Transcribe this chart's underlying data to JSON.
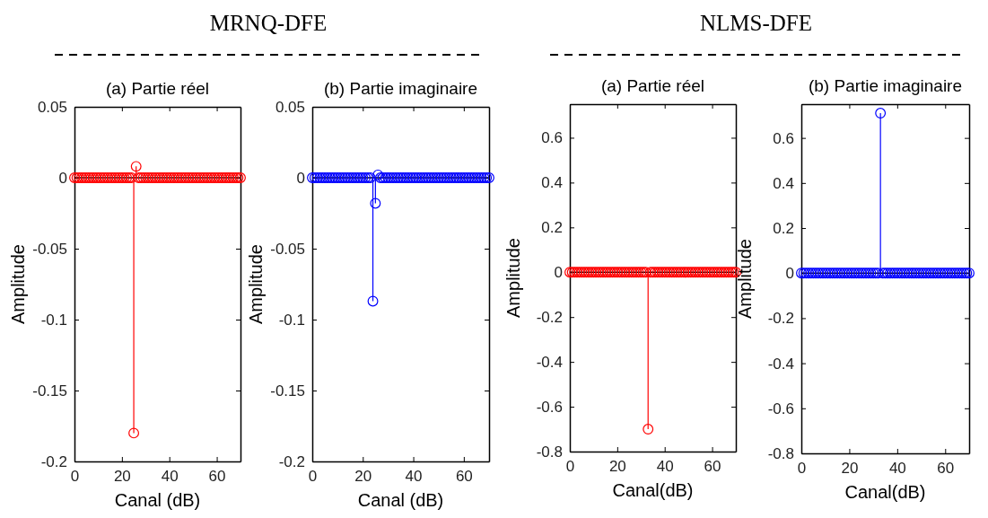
{
  "chart_data": [
    {
      "type": "lollipop",
      "title": "(a) Partie réel",
      "xlabel": "Canal (dB)",
      "ylabel": "Amplitude",
      "annotations": [
        "MRNQ-DFE"
      ],
      "marker": "circle",
      "grid": false,
      "xlim": [
        0,
        70
      ],
      "xticks": [
        0,
        20,
        40,
        60
      ],
      "ylim": [
        -0.2,
        0.05
      ],
      "yticks": [
        -0.2,
        -0.15,
        -0.1,
        -0.05,
        0,
        0.05
      ],
      "ref_lines": [
        {
          "axis": "y",
          "value": 0,
          "color": "#000000"
        }
      ],
      "series": [
        {
          "color": "#ff0000",
          "x": [
            0,
            1,
            2,
            3,
            4,
            5,
            6,
            7,
            8,
            9,
            10,
            11,
            12,
            13,
            14,
            15,
            16,
            17,
            18,
            19,
            20,
            21,
            22,
            23,
            24,
            25,
            26,
            27,
            28,
            29,
            30,
            31,
            32,
            33,
            34,
            35,
            36,
            37,
            38,
            39,
            40,
            41,
            42,
            43,
            44,
            45,
            46,
            47,
            48,
            49,
            50,
            51,
            52,
            53,
            54,
            55,
            56,
            57,
            58,
            59,
            60,
            61,
            62,
            63,
            64,
            65,
            66,
            67,
            68,
            69,
            70
          ],
          "values": [
            0,
            0,
            0,
            0,
            0,
            0,
            0,
            0,
            0,
            0,
            0,
            0,
            0,
            0,
            0,
            0,
            0,
            0,
            0,
            0,
            0,
            0,
            0,
            0,
            0,
            -0.18,
            0.008,
            0,
            0,
            0,
            0,
            0,
            0,
            0,
            0,
            0,
            0,
            0,
            0,
            0,
            0,
            0,
            0,
            0,
            0,
            0,
            0,
            0,
            0,
            0,
            0,
            0,
            0,
            0,
            0,
            0,
            0,
            0,
            0,
            0,
            0,
            0,
            0,
            0,
            0,
            0,
            0,
            0,
            0,
            0,
            0
          ]
        }
      ]
    },
    {
      "type": "lollipop",
      "title": "(b) Partie imaginaire",
      "xlabel": "Canal (dB)",
      "ylabel": "Amplitude",
      "marker": "circle",
      "grid": false,
      "xlim": [
        0,
        70
      ],
      "xticks": [
        0,
        20,
        40,
        60
      ],
      "ylim": [
        -0.2,
        0.05
      ],
      "yticks": [
        -0.2,
        -0.15,
        -0.1,
        -0.05,
        0,
        0.05
      ],
      "ref_lines": [
        {
          "axis": "y",
          "value": 0,
          "color": "#000000"
        }
      ],
      "series": [
        {
          "color": "#0000ff",
          "x": [
            0,
            1,
            2,
            3,
            4,
            5,
            6,
            7,
            8,
            9,
            10,
            11,
            12,
            13,
            14,
            15,
            16,
            17,
            18,
            19,
            20,
            21,
            22,
            23,
            24,
            25,
            26,
            27,
            28,
            29,
            30,
            31,
            32,
            33,
            34,
            35,
            36,
            37,
            38,
            39,
            40,
            41,
            42,
            43,
            44,
            45,
            46,
            47,
            48,
            49,
            50,
            51,
            52,
            53,
            54,
            55,
            56,
            57,
            58,
            59,
            60,
            61,
            62,
            63,
            64,
            65,
            66,
            67,
            68,
            69,
            70
          ],
          "values": [
            0,
            0,
            0,
            0,
            0,
            0,
            0,
            0,
            0,
            0,
            0,
            0,
            0,
            0,
            0,
            0,
            0,
            0,
            0,
            0,
            0,
            0,
            0,
            0,
            -0.087,
            -0.018,
            0.002,
            0,
            0,
            0,
            0,
            0,
            0,
            0,
            0,
            0,
            0,
            0,
            0,
            0,
            0,
            0,
            0,
            0,
            0,
            0,
            0,
            0,
            0,
            0,
            0,
            0,
            0,
            0,
            0,
            0,
            0,
            0,
            0,
            0,
            0,
            0,
            0,
            0,
            0,
            0,
            0,
            0,
            0,
            0,
            0
          ]
        }
      ]
    },
    {
      "type": "lollipop",
      "title": "(a) Partie réel",
      "xlabel": "Canal(dB)",
      "ylabel": "Amplitude",
      "annotations": [
        "NLMS-DFE"
      ],
      "marker": "circle",
      "grid": false,
      "xlim": [
        0,
        70
      ],
      "xticks": [
        0,
        20,
        40,
        60
      ],
      "ylim": [
        -0.8,
        0.75
      ],
      "yticks": [
        -0.8,
        -0.6,
        -0.4,
        -0.2,
        0,
        0.2,
        0.4,
        0.6
      ],
      "ref_lines": [
        {
          "axis": "y",
          "value": 0,
          "color": "#000000"
        }
      ],
      "series": [
        {
          "color": "#ff0000",
          "x": [
            0,
            1,
            2,
            3,
            4,
            5,
            6,
            7,
            8,
            9,
            10,
            11,
            12,
            13,
            14,
            15,
            16,
            17,
            18,
            19,
            20,
            21,
            22,
            23,
            24,
            25,
            26,
            27,
            28,
            29,
            30,
            31,
            32,
            33,
            34,
            35,
            36,
            37,
            38,
            39,
            40,
            41,
            42,
            43,
            44,
            45,
            46,
            47,
            48,
            49,
            50,
            51,
            52,
            53,
            54,
            55,
            56,
            57,
            58,
            59,
            60,
            61,
            62,
            63,
            64,
            65,
            66,
            67,
            68,
            69,
            70
          ],
          "values": [
            0,
            0,
            0,
            0,
            0,
            0,
            0,
            0,
            0,
            0,
            0,
            0,
            0,
            0,
            0,
            0,
            0,
            0,
            0,
            0,
            0,
            0,
            0,
            0,
            0,
            0,
            0,
            0,
            0,
            0,
            0,
            0,
            0,
            -0.7,
            0,
            0,
            0,
            0,
            0,
            0,
            0,
            0,
            0,
            0,
            0,
            0,
            0,
            0,
            0,
            0,
            0,
            0,
            0,
            0,
            0,
            0,
            0,
            0,
            0,
            0,
            0,
            0,
            0,
            0,
            0,
            0,
            0,
            0,
            0,
            0,
            0
          ]
        }
      ]
    },
    {
      "type": "lollipop",
      "title": "(b) Partie imaginaire",
      "xlabel": "Canal(dB)",
      "ylabel": "Amplitude",
      "marker": "circle",
      "grid": false,
      "xlim": [
        0,
        70
      ],
      "xticks": [
        0,
        20,
        40,
        60
      ],
      "ylim": [
        -0.8,
        0.75
      ],
      "yticks": [
        -0.8,
        -0.6,
        -0.4,
        -0.2,
        0,
        0.2,
        0.4,
        0.6
      ],
      "ref_lines": [
        {
          "axis": "y",
          "value": 0,
          "color": "#000000"
        }
      ],
      "series": [
        {
          "color": "#0000ff",
          "x": [
            0,
            1,
            2,
            3,
            4,
            5,
            6,
            7,
            8,
            9,
            10,
            11,
            12,
            13,
            14,
            15,
            16,
            17,
            18,
            19,
            20,
            21,
            22,
            23,
            24,
            25,
            26,
            27,
            28,
            29,
            30,
            31,
            32,
            33,
            34,
            35,
            36,
            37,
            38,
            39,
            40,
            41,
            42,
            43,
            44,
            45,
            46,
            47,
            48,
            49,
            50,
            51,
            52,
            53,
            54,
            55,
            56,
            57,
            58,
            59,
            60,
            61,
            62,
            63,
            64,
            65,
            66,
            67,
            68,
            69,
            70
          ],
          "values": [
            0,
            0,
            0,
            0,
            0,
            0,
            0,
            0,
            0,
            0,
            0,
            0,
            0,
            0,
            0,
            0,
            0,
            0,
            0,
            0,
            0,
            0,
            0,
            0,
            0,
            0,
            0,
            0,
            0,
            0,
            0,
            0,
            0,
            0.71,
            0,
            0,
            0,
            0,
            0,
            0,
            0,
            0,
            0,
            0,
            0,
            0,
            0,
            0,
            0,
            0,
            0,
            0,
            0,
            0,
            0,
            0,
            0,
            0,
            0,
            0,
            0,
            0,
            0,
            0,
            0,
            0,
            0,
            0,
            0,
            0,
            0
          ]
        }
      ]
    }
  ]
}
